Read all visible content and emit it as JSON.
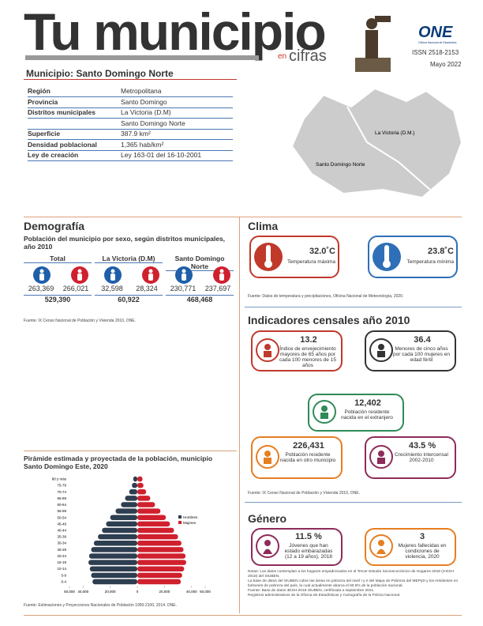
{
  "header": {
    "title": "Tu municipio",
    "subtitle_small": "en",
    "subtitle": "cifras",
    "logo": "ONE",
    "logo_sub": "Oficina Nacional de Estadística",
    "issn": "ISSN  2518-2153",
    "date": "Mayo 2022"
  },
  "municipality": "Municipio: Santo Domingo Norte",
  "info_table": {
    "rows": [
      {
        "label": "Región",
        "values": [
          "Metropolitana"
        ]
      },
      {
        "label": "Provincia",
        "values": [
          "Santo Domingo"
        ]
      },
      {
        "label": "Distritos municipales",
        "values": [
          "La Victoria (D.M)",
          "Santo Domingo Norte"
        ]
      },
      {
        "label": "Superficie",
        "values": [
          "387.9 km²"
        ]
      },
      {
        "label": "Densidad poblacional",
        "values": [
          "1,365 hab/km²"
        ]
      },
      {
        "label": "Ley de creación",
        "values": [
          "Ley 163-01 del 16-10-2001"
        ]
      }
    ]
  },
  "map": {
    "labels": [
      "La Victoria (D.M.)",
      "Santo Domingo Norte"
    ]
  },
  "demography": {
    "title": "Demografía",
    "subtitle": "Población del municipio por sexo, según distritos municipales, año 2010",
    "groups": [
      {
        "name": "Total",
        "men": "263,369",
        "women": "266,021",
        "total": "529,390"
      },
      {
        "name": "La Victoria (D.M)",
        "men": "32,598",
        "women": "28,324",
        "total": "60,922"
      },
      {
        "name": "Santo Domingo Norte",
        "men": "230,771",
        "women": "237,697",
        "total": "468,468"
      }
    ],
    "source": "Fuente: IX Censo Nacional de Población y Vivienda 2010, ONE."
  },
  "climate": {
    "title": "Clima",
    "items": [
      {
        "value": "32.0˚C",
        "label": "Temperatura máxima"
      },
      {
        "value": "23.8˚C",
        "label": "Temperatura mínima"
      }
    ],
    "source": "Fuente: Datos de temperatura y precipitaciones, Oficina Nacional de Meteorología, 2020."
  },
  "census": {
    "title": "Indicadores censales año 2010",
    "items": [
      {
        "value": "13.2",
        "label": "Índice de envejecimiento mayores de 65 años por cada 100 menores de 15 años"
      },
      {
        "value": "36.4",
        "label": "Menores de cinco años por cada 100 mujeres en edad fértil"
      },
      {
        "value": "12,402",
        "label": "Población residente nacida en el extranjero"
      },
      {
        "value": "226,431",
        "label": "Población residente nacida en otro municipio"
      },
      {
        "value": "43.5 %",
        "label": "Crecimiento intercensal 2002-2010"
      }
    ],
    "source": "Fuente: IX Censo Nacional de Población y Vivienda 2010, ONE."
  },
  "gender": {
    "title": "Género",
    "items": [
      {
        "value": "11.5 %",
        "label": "Jóvenes que han estado embarazadas (12 a 19 años), 2018"
      },
      {
        "value": "3",
        "label": "Mujeres fallecidas en condiciones de violencia, 2020"
      }
    ],
    "notes": [
      "Notas: Los datos contemplan a los hogares empadronados en el Tercer Estudio Socioeconómico de Hogares 2018 (3-ESH 2018) del SIUBEN.",
      "La base de datos del SIUBEN cubre las áreas en pobreza del nivel I y II del Mapa de Pobreza del MEPyD y los residentes en bolsones de pobreza del país, la cual actualmente abarca el 60.5% de la población nacional.",
      "Fuente: Base de datos 3ESH-2018 SIUBEN, certificada a septiembre 2021.",
      "Registros administrativos de la Oficina de Estadísticas y Cartografía de la Policía Nacional."
    ]
  },
  "chart_data": {
    "type": "pyramid",
    "title": "Pirámide estimada y proyectada de la población, municipio Santo Domingo Este, 2020",
    "categories": [
      "0-4",
      "5-9",
      "10-14",
      "15-19",
      "20-24",
      "25-29",
      "30-34",
      "35-39",
      "40-44",
      "45-49",
      "50-54",
      "55-59",
      "60-64",
      "65-69",
      "70-74",
      "75-79",
      "80 y más"
    ],
    "series": [
      {
        "name": "Hombres",
        "color": "#2d3e50",
        "values": [
          33000,
          34000,
          35000,
          36000,
          35500,
          34000,
          32000,
          29000,
          26000,
          23000,
          20000,
          16000,
          12000,
          9000,
          6000,
          4000,
          3000
        ]
      },
      {
        "name": "Mujeres",
        "color": "#d0202e",
        "values": [
          32000,
          33000,
          34500,
          36000,
          35500,
          34000,
          32500,
          30000,
          27000,
          24000,
          21000,
          17000,
          13000,
          9500,
          6500,
          4500,
          3800
        ]
      }
    ],
    "xlim": [
      -50000,
      50000
    ],
    "xticks": [
      {
        "value": -50000,
        "label": "50,000"
      },
      {
        "value": -40000,
        "label": "40,000"
      },
      {
        "value": -20000,
        "label": "20,000"
      },
      0,
      {
        "value": 20000,
        "label": "20,000"
      },
      {
        "value": 40000,
        "label": "40,000"
      },
      {
        "value": 50000,
        "label": "50,000"
      }
    ],
    "source": "Fuente: Estimaciones y Proyecciones Nacionales de Población 1950-2100, 2014. ONE."
  }
}
